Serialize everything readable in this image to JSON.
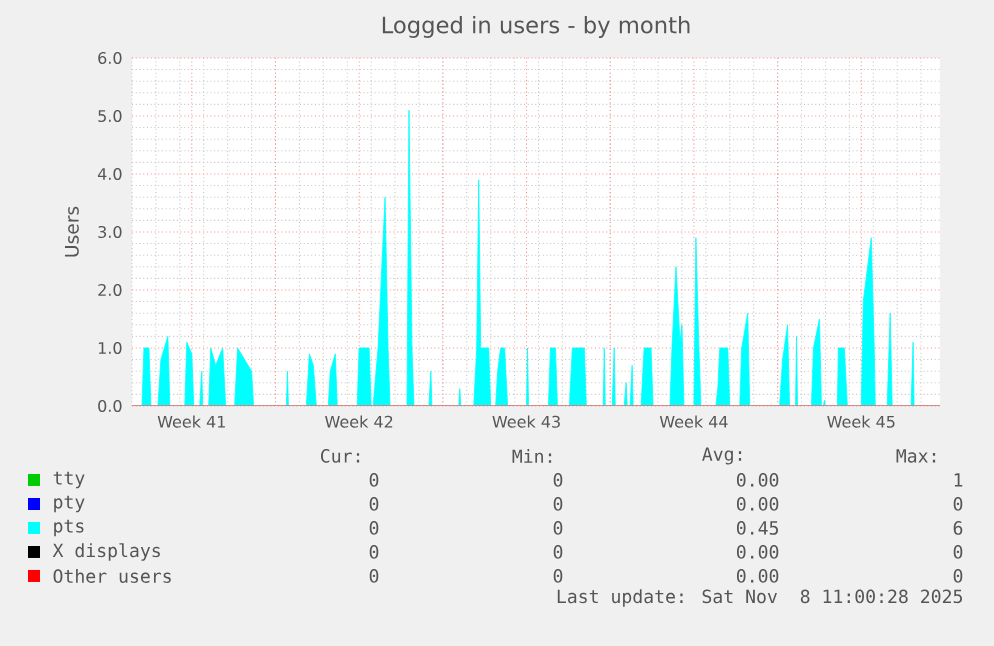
{
  "chart_data": {
    "type": "area",
    "title": "Logged in users - by month",
    "ylabel": "Users",
    "xlim": [
      "2025-10-07T00:00",
      "2025-11-09T19:00"
    ],
    "ylim": [
      0,
      6
    ],
    "xticks": [
      {
        "value": "2025-10-09T12:00",
        "label": "Week 41"
      },
      {
        "value": "2025-10-13T00:00",
        "label": null
      },
      {
        "value": "2025-10-16T12:00",
        "label": "Week 42"
      },
      {
        "value": "2025-10-20T00:00",
        "label": null
      },
      {
        "value": "2025-10-23T12:00",
        "label": "Week 43"
      },
      {
        "value": "2025-10-27T00:00",
        "label": null
      },
      {
        "value": "2025-10-30T12:00",
        "label": "Week 44"
      },
      {
        "value": "2025-11-03T00:00",
        "label": null
      },
      {
        "value": "2025-11-06T12:00",
        "label": "Week 45"
      }
    ],
    "yticks": [
      {
        "value": 0,
        "label": "0.0"
      },
      {
        "value": 1,
        "label": "1.0"
      },
      {
        "value": 2,
        "label": "2.0"
      },
      {
        "value": 3,
        "label": "3.0"
      },
      {
        "value": 4,
        "label": "4.0"
      },
      {
        "value": 5,
        "label": "5.0"
      },
      {
        "value": 6,
        "label": "6.0"
      }
    ],
    "grid": true,
    "legend": "bottom",
    "series": [
      {
        "name": "tty",
        "color": "#00cc00"
      },
      {
        "name": "pty",
        "color": "#0000ff"
      },
      {
        "name": "pts",
        "color": "#00ffff",
        "x": [
          "2025-10-07T00:00",
          "2025-10-07T10:00",
          "2025-10-07T12:00",
          "2025-10-07T17:00",
          "2025-10-07T19:00",
          "2025-10-08T02:00",
          "2025-10-08T05:00",
          "2025-10-08T12:00",
          "2025-10-08T14:00",
          "2025-10-09T05:00",
          "2025-10-09T07:00",
          "2025-10-09T12:00",
          "2025-10-09T14:00",
          "2025-10-09T20:00",
          "2025-10-09T22:00",
          "2025-10-09T23:00",
          "2025-10-10T05:00",
          "2025-10-10T07:00",
          "2025-10-10T12:00",
          "2025-10-10T19:00",
          "2025-10-10T22:00",
          "2025-10-11T07:00",
          "2025-10-11T10:00",
          "2025-10-11T17:00",
          "2025-10-12T00:00",
          "2025-10-12T02:00",
          "2025-10-13T11:00",
          "2025-10-13T12:00",
          "2025-10-13T13:00",
          "2025-10-14T07:00",
          "2025-10-14T10:00",
          "2025-10-14T14:00",
          "2025-10-14T17:00",
          "2025-10-15T05:00",
          "2025-10-15T07:00",
          "2025-10-15T12:00",
          "2025-10-15T14:00",
          "2025-10-16T10:00",
          "2025-10-16T12:00",
          "2025-10-16T22:00",
          "2025-10-17T00:00",
          "2025-10-17T02:00",
          "2025-10-17T07:00",
          "2025-10-17T14:00",
          "2025-10-17T17:00",
          "2025-10-17T19:00",
          "2025-10-18T12:00",
          "2025-10-18T14:00",
          "2025-10-18T17:00",
          "2025-10-18T19:00",
          "2025-10-19T10:00",
          "2025-10-19T12:00",
          "2025-10-19T13:00",
          "2025-10-20T16:00",
          "2025-10-20T17:00",
          "2025-10-20T18:00",
          "2025-10-21T07:00",
          "2025-10-21T10:00",
          "2025-10-21T12:00",
          "2025-10-21T14:00",
          "2025-10-21T22:00",
          "2025-10-22T00:00",
          "2025-10-22T05:00",
          "2025-10-22T07:00",
          "2025-10-22T10:00",
          "2025-10-22T14:00",
          "2025-10-22T17:00",
          "2025-10-23T12:00",
          "2025-10-23T13:00",
          "2025-10-23T14:00",
          "2025-10-24T10:00",
          "2025-10-24T12:00",
          "2025-10-24T17:00",
          "2025-10-24T19:00",
          "2025-10-25T07:00",
          "2025-10-25T10:00",
          "2025-10-25T22:00",
          "2025-10-26T00:00",
          "2025-10-26T17:00",
          "2025-10-26T18:00",
          "2025-10-26T19:00",
          "2025-10-27T02:00",
          "2025-10-27T04:00",
          "2025-10-27T05:00",
          "2025-10-27T14:00",
          "2025-10-27T16:00",
          "2025-10-27T17:00",
          "2025-10-27T20:00",
          "2025-10-27T22:00",
          "2025-10-27T23:00",
          "2025-10-28T07:00",
          "2025-10-28T10:00",
          "2025-10-28T17:00",
          "2025-10-28T19:00",
          "2025-10-29T12:00",
          "2025-10-29T14:00",
          "2025-10-29T18:00",
          "2025-10-29T22:00",
          "2025-10-30T00:00",
          "2025-10-30T02:00",
          "2025-10-30T12:00",
          "2025-10-30T14:00",
          "2025-10-30T17:00",
          "2025-10-30T19:00",
          "2025-10-31T10:00",
          "2025-10-31T12:00",
          "2025-10-31T14:00",
          "2025-10-31T22:00",
          "2025-11-01T00:00",
          "2025-11-01T10:00",
          "2025-11-01T12:00",
          "2025-11-01T18:00",
          "2025-11-01T20:00",
          "2025-11-03T02:00",
          "2025-11-03T05:00",
          "2025-11-03T10:00",
          "2025-11-03T12:00",
          "2025-11-03T18:00",
          "2025-11-03T19:00",
          "2025-11-03T20:00",
          "2025-11-04T10:00",
          "2025-11-04T12:00",
          "2025-11-04T18:00",
          "2025-11-04T20:00",
          "2025-11-04T22:00",
          "2025-11-04T23:00",
          "2025-11-05T00:00",
          "2025-11-05T12:00",
          "2025-11-05T13:00",
          "2025-11-05T19:00",
          "2025-11-05T22:00",
          "2025-11-06T12:00",
          "2025-11-06T14:00",
          "2025-11-06T22:00",
          "2025-11-07T01:00",
          "2025-11-07T02:00",
          "2025-11-07T14:00",
          "2025-11-07T17:00",
          "2025-11-07T19:00",
          "2025-11-08T14:00",
          "2025-11-08T16:00",
          "2025-11-08T17:00",
          "2025-11-09T19:00"
        ],
        "values": [
          0,
          0,
          1.0,
          1.0,
          0,
          0,
          0.8,
          1.2,
          0,
          0,
          1.1,
          0.9,
          0,
          0,
          0.6,
          0,
          0,
          1.0,
          0.7,
          1.0,
          0,
          0,
          1.0,
          0.8,
          0.6,
          0,
          0,
          0.6,
          0,
          0,
          0.9,
          0.7,
          0,
          0,
          0.6,
          0.9,
          0,
          0,
          1.0,
          1.0,
          0,
          0,
          1.0,
          3.6,
          1.0,
          0,
          0,
          5.1,
          1.0,
          0,
          0,
          0.6,
          0,
          0,
          0.3,
          0,
          0,
          1.0,
          3.9,
          1.0,
          1.0,
          0,
          0,
          0.6,
          1.0,
          1.0,
          0,
          0,
          1.0,
          0,
          0,
          1.0,
          1.0,
          0,
          0,
          1.0,
          1.0,
          0,
          0,
          1.0,
          0,
          0,
          1.0,
          0,
          0,
          0.4,
          0,
          0,
          0.7,
          0,
          0,
          1.0,
          1.0,
          0,
          0,
          1.0,
          2.4,
          1.1,
          1.4,
          0,
          0,
          2.9,
          1.0,
          0,
          0,
          0.3,
          1.0,
          1.0,
          0,
          0,
          1.0,
          1.6,
          0,
          0,
          0.8,
          1.4,
          0,
          0,
          1.2,
          0,
          0,
          1.0,
          1.5,
          0,
          0,
          0.1,
          0,
          0,
          1.0,
          1.0,
          0,
          0,
          1.8,
          2.9,
          1.0,
          0,
          0,
          1.6,
          0,
          0,
          1.1,
          0,
          0
        ]
      },
      {
        "name": "X displays",
        "color": "#000000"
      },
      {
        "name": "Other users",
        "color": "#ff0000"
      }
    ],
    "annotations": [
      "Cur:",
      "Min:",
      "Avg:",
      "Max:",
      "0",
      "0",
      "0.00",
      "1",
      "0",
      "0",
      "0.00",
      "0",
      "0",
      "0",
      "0.45",
      "6",
      "0",
      "0",
      "0.00",
      "0",
      "0",
      "0",
      "0.00",
      "0",
      "Last update: Sat Nov  8 11:00:28 2025"
    ]
  }
}
